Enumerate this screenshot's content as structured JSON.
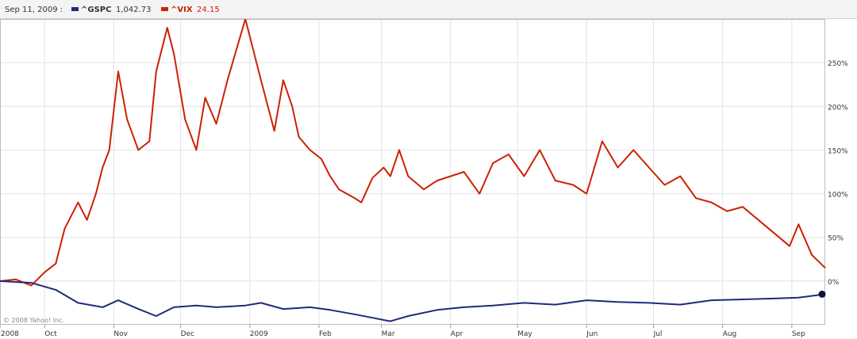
{
  "header": {
    "date_label": "Sep 11, 2009 :",
    "series": [
      {
        "symbol": "^GSPC",
        "value": "1,042.73",
        "color": "#1f2a7a"
      },
      {
        "symbol": "^VIX",
        "value": "24.15",
        "color": "#cc2200"
      }
    ]
  },
  "copyright": "© 2008 Yahoo! Inc.",
  "chart_data": {
    "type": "line",
    "x_ticks": [
      "2008",
      "Oct",
      "Nov",
      "Dec",
      "2009",
      "Feb",
      "Mar",
      "Apr",
      "May",
      "Jun",
      "Jul",
      "Aug",
      "Sep"
    ],
    "y_ticks": [
      "250%",
      "200%",
      "150%",
      "100%",
      "50%",
      "0%"
    ],
    "y_tick_values": [
      250,
      200,
      150,
      100,
      50,
      0
    ],
    "ylim": [
      -50,
      300
    ],
    "x_range": [
      "2008-09-11",
      "2009-09-16"
    ],
    "grid": true,
    "series": [
      {
        "name": "^VIX",
        "color": "#cc2200",
        "x": [
          "2008-09-11",
          "2008-09-18",
          "2008-09-25",
          "2008-10-01",
          "2008-10-06",
          "2008-10-10",
          "2008-10-16",
          "2008-10-20",
          "2008-10-24",
          "2008-10-27",
          "2008-10-30",
          "2008-11-03",
          "2008-11-07",
          "2008-11-12",
          "2008-11-17",
          "2008-11-20",
          "2008-11-25",
          "2008-11-28",
          "2008-12-03",
          "2008-12-08",
          "2008-12-12",
          "2008-12-17",
          "2008-12-22",
          "2008-12-30",
          "2009-01-06",
          "2009-01-12",
          "2009-01-16",
          "2009-01-20",
          "2009-01-23",
          "2009-01-28",
          "2009-02-02",
          "2009-02-06",
          "2009-02-10",
          "2009-02-17",
          "2009-02-20",
          "2009-02-25",
          "2009-03-02",
          "2009-03-05",
          "2009-03-09",
          "2009-03-13",
          "2009-03-20",
          "2009-03-26",
          "2009-04-01",
          "2009-04-07",
          "2009-04-14",
          "2009-04-20",
          "2009-04-27",
          "2009-05-04",
          "2009-05-11",
          "2009-05-18",
          "2009-05-26",
          "2009-06-01",
          "2009-06-08",
          "2009-06-15",
          "2009-06-22",
          "2009-06-29",
          "2009-07-06",
          "2009-07-13",
          "2009-07-20",
          "2009-07-27",
          "2009-08-03",
          "2009-08-10",
          "2009-08-17",
          "2009-08-24",
          "2009-08-31",
          "2009-09-04",
          "2009-09-10",
          "2009-09-16"
        ],
        "values": [
          0,
          2,
          -5,
          10,
          20,
          60,
          90,
          70,
          100,
          130,
          150,
          240,
          185,
          150,
          160,
          240,
          290,
          260,
          185,
          150,
          210,
          180,
          230,
          300,
          230,
          172,
          230,
          200,
          165,
          150,
          140,
          120,
          105,
          95,
          90,
          118,
          130,
          120,
          150,
          120,
          105,
          115,
          120,
          125,
          100,
          135,
          145,
          120,
          150,
          115,
          110,
          100,
          160,
          130,
          150,
          130,
          110,
          120,
          95,
          90,
          80,
          85,
          70,
          55,
          40,
          65,
          30,
          15
        ]
      },
      {
        "name": "^GSPC",
        "color": "#1f2a7a",
        "x": [
          "2008-09-11",
          "2008-09-25",
          "2008-10-06",
          "2008-10-16",
          "2008-10-27",
          "2008-11-03",
          "2008-11-12",
          "2008-11-20",
          "2008-11-28",
          "2008-12-08",
          "2008-12-17",
          "2008-12-30",
          "2009-01-06",
          "2009-01-16",
          "2009-01-28",
          "2009-02-06",
          "2009-02-17",
          "2009-02-25",
          "2009-03-05",
          "2009-03-13",
          "2009-03-26",
          "2009-04-07",
          "2009-04-20",
          "2009-05-04",
          "2009-05-18",
          "2009-06-01",
          "2009-06-15",
          "2009-06-29",
          "2009-07-13",
          "2009-07-27",
          "2009-08-10",
          "2009-08-24",
          "2009-09-04",
          "2009-09-16"
        ],
        "values": [
          0,
          -2,
          -10,
          -25,
          -30,
          -22,
          -32,
          -40,
          -30,
          -28,
          -30,
          -28,
          -25,
          -32,
          -30,
          -33,
          -38,
          -42,
          -46,
          -40,
          -33,
          -30,
          -28,
          -25,
          -27,
          -22,
          -24,
          -25,
          -27,
          -22,
          -21,
          -20,
          -19,
          -15
        ]
      }
    ]
  }
}
